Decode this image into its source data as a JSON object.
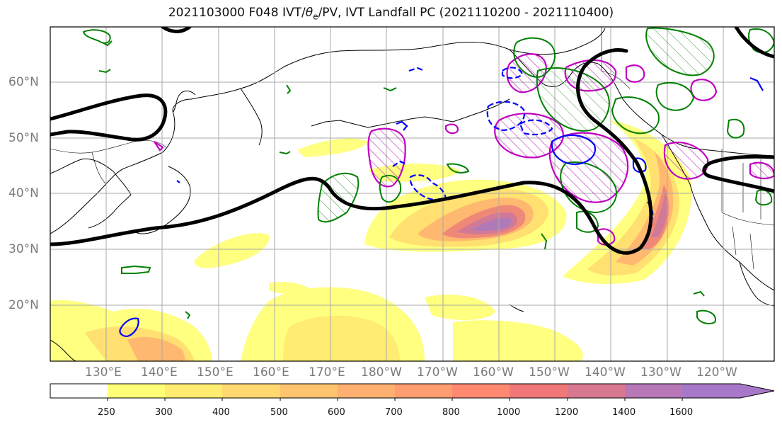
{
  "title": {
    "prefix": "2021103000 F048 IVT/",
    "theta": "θ",
    "theta_sub": "e",
    "suffix": "/PV, IVT Landfall PC (2021110200 - 2021110400)"
  },
  "map": {
    "lat_labels": [
      "60°N",
      "50°N",
      "40°N",
      "30°N",
      "20°N"
    ],
    "lon_labels": [
      "130°E",
      "140°E",
      "150°E",
      "160°E",
      "170°E",
      "180°W",
      "170°W",
      "160°W",
      "150°W",
      "140°W",
      "130°W",
      "120°W"
    ],
    "ivt_color": "#ffff66",
    "theta_e_color": "#000000",
    "pv_positive_color": "#008000",
    "pv_negative_color": "#0000ff",
    "landfall_pc_color": "#c000c0"
  },
  "colorbar": {
    "ticks": [
      "250",
      "300",
      "400",
      "500",
      "600",
      "700",
      "800",
      "1000",
      "1200",
      "1400",
      "1600"
    ],
    "colors": [
      "#ffffff",
      "#ffff77",
      "#ffec70",
      "#ffd870",
      "#ffc470",
      "#ffb070",
      "#ff9c70",
      "#ff8870",
      "#f07878",
      "#d87890",
      "#b878b8",
      "#a878c8"
    ]
  }
}
